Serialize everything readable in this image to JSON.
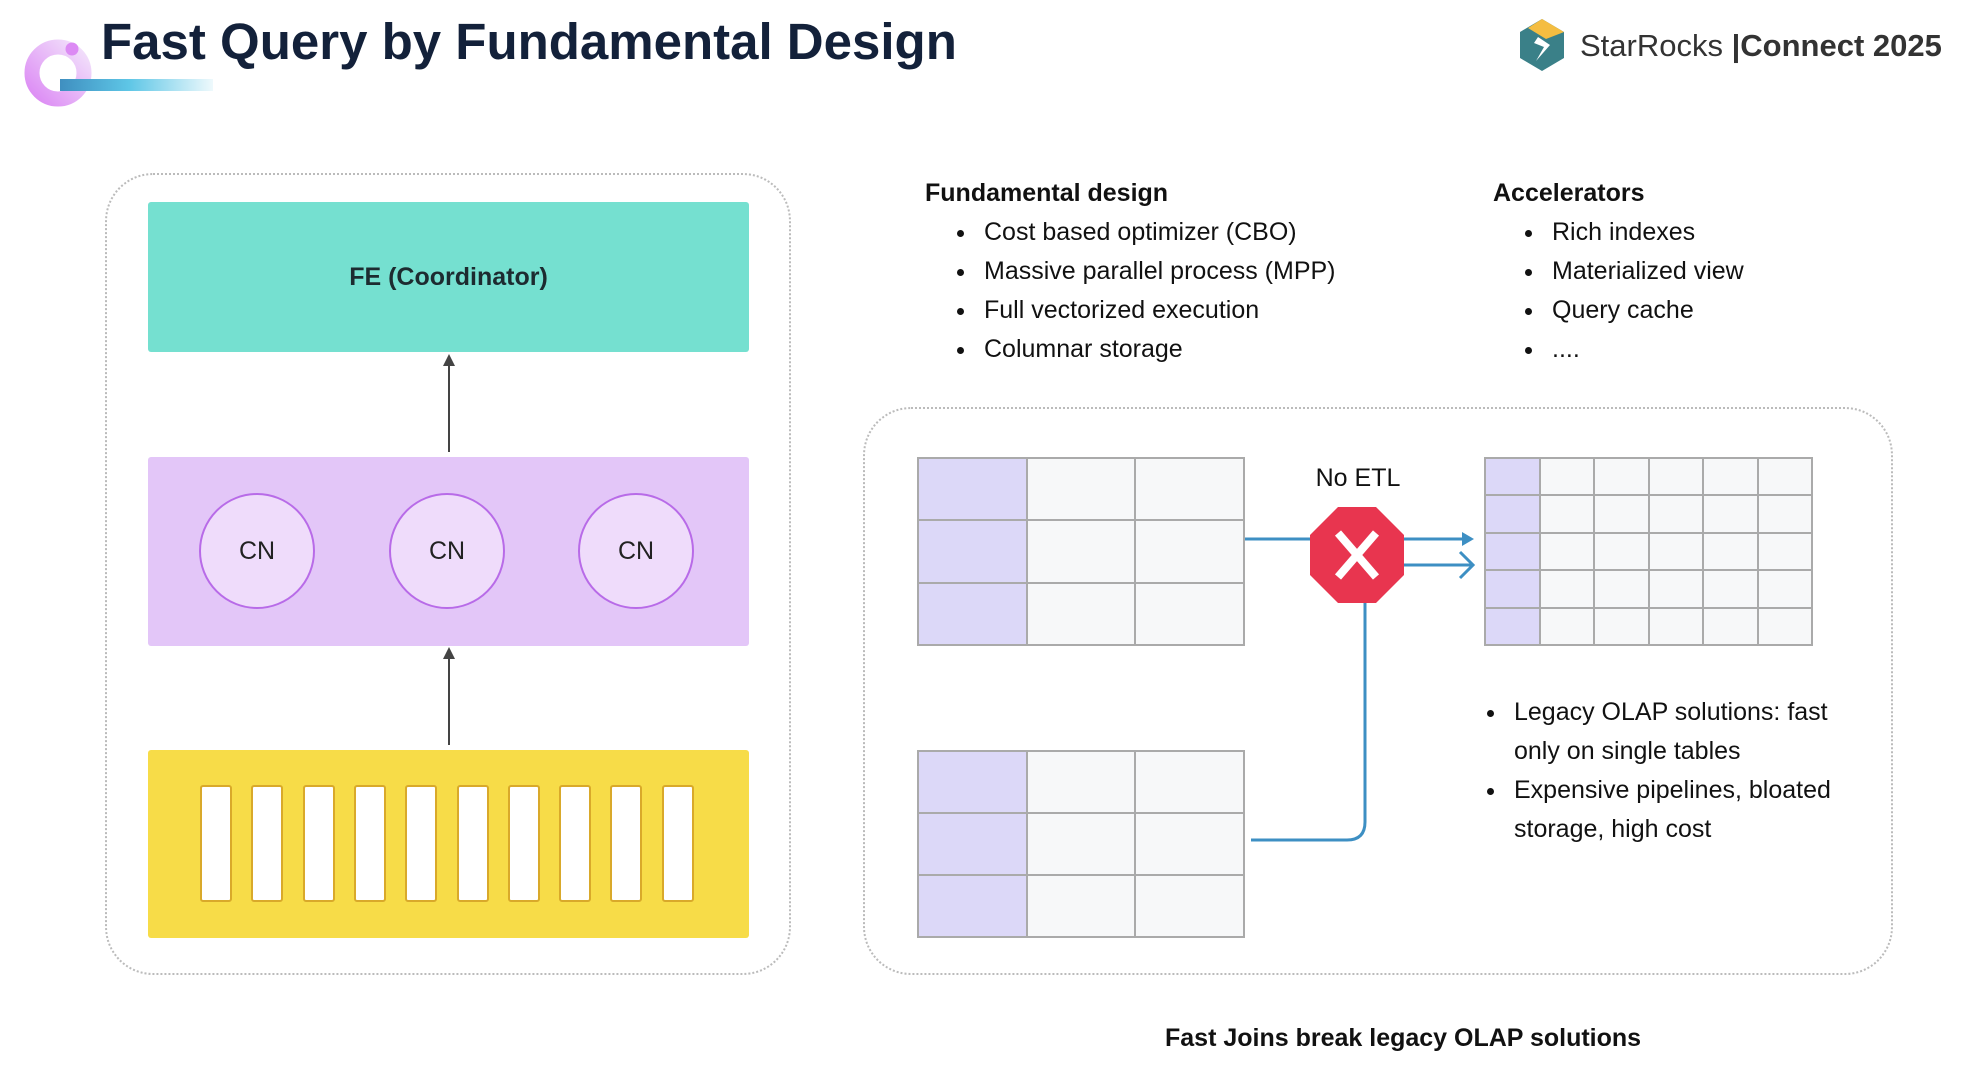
{
  "header": {
    "title": "Fast Query by Fundamental Design",
    "logo_brand": "StarRocks",
    "logo_event": "Connect 2025"
  },
  "architecture": {
    "fe_label": "FE (Coordinator)",
    "cn_labels": [
      "CN",
      "CN",
      "CN"
    ],
    "storage_segments": 10
  },
  "fundamental": {
    "heading": "Fundamental design",
    "items": [
      "Cost based optimizer (CBO)",
      "Massive parallel process (MPP)",
      "Full vectorized execution",
      "Columnar storage"
    ]
  },
  "accelerators": {
    "heading": "Accelerators",
    "items": [
      "Rich indexes",
      "Materialized view",
      "Query cache",
      "...."
    ]
  },
  "join_diagram": {
    "no_etl_label": "No ETL",
    "notes": [
      "Legacy OLAP solutions: fast only on single tables",
      "Expensive pipelines, bloated storage, high cost"
    ],
    "caption": "Fast Joins break legacy OLAP solutions"
  },
  "colors": {
    "fe": "#75e0d0",
    "cn": "#e3c6f8",
    "storage": "#f7dc48",
    "stop": "#e8354f",
    "line": "#3d8fc3"
  }
}
